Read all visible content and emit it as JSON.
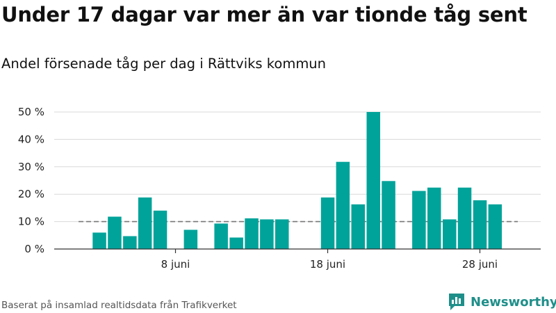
{
  "title": "Under 17 dagar var mer än var tionde tåg sent",
  "subtitle": "Andel försenade tåg per dag i Rättviks kommun",
  "source": "Baserat på insamlad realtidsdata från Trafikverket",
  "logo": {
    "text": "Newsworthy",
    "icon": "newsworthy-logo-icon"
  },
  "colors": {
    "bar": "#00a39a",
    "grid": "#d9d9d9",
    "reference": "#777777",
    "axis": "#333333"
  },
  "chart_data": {
    "type": "bar",
    "title": "Under 17 dagar var mer än var tionde tåg sent",
    "subtitle": "Andel försenade tåg per dag i Rättviks kommun",
    "x_unit": "day of June",
    "x": [
      3,
      4,
      5,
      6,
      7,
      8,
      9,
      10,
      11,
      12,
      13,
      14,
      15,
      16,
      17,
      18,
      19,
      20,
      21,
      22,
      23,
      24,
      25,
      26,
      27,
      28,
      29,
      30
    ],
    "values": [
      6.0,
      11.8,
      4.7,
      18.8,
      14.0,
      null,
      7.0,
      null,
      9.3,
      4.2,
      11.2,
      10.8,
      10.8,
      null,
      null,
      18.8,
      31.8,
      16.3,
      50.0,
      24.8,
      null,
      21.2,
      22.4,
      10.8,
      22.4,
      17.8,
      16.3,
      null
    ],
    "xticks": [
      {
        "day": 8,
        "label": "8 juni"
      },
      {
        "day": 18,
        "label": "18 juni"
      },
      {
        "day": 28,
        "label": "28 juni"
      }
    ],
    "yticks": [
      {
        "value": 0,
        "label": "0 %"
      },
      {
        "value": 10,
        "label": "10 %"
      },
      {
        "value": 20,
        "label": "20 %"
      },
      {
        "value": 30,
        "label": "30 %"
      },
      {
        "value": 40,
        "label": "40 %"
      },
      {
        "value": 50,
        "label": "50 %"
      }
    ],
    "ylim": [
      0,
      50
    ],
    "reference_line": {
      "value": 10,
      "style": "dashed"
    },
    "grid": true,
    "legend": false
  }
}
